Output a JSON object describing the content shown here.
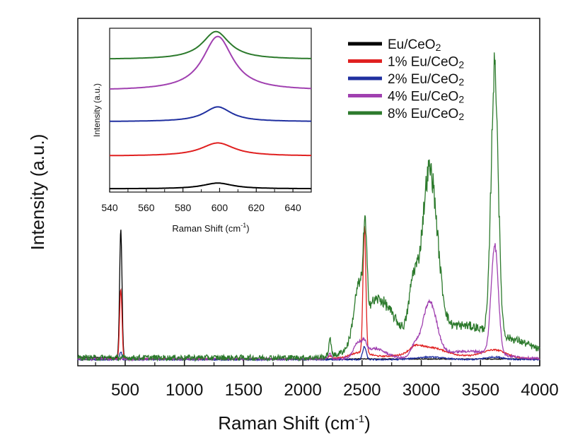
{
  "chart_data": [
    {
      "id": "main",
      "type": "line",
      "title": "",
      "xlabel": "Raman Shift (cm",
      "xlabel_sup": "-1",
      "xlabel_end": ")",
      "ylabel": "Intensity (a.u.)",
      "xlim": [
        100,
        4000
      ],
      "ylim": [
        0,
        100
      ],
      "xticks": [
        500,
        1000,
        1500,
        2000,
        2500,
        3000,
        3500,
        4000
      ],
      "xtick_labels": [
        "500",
        "1000",
        "1500",
        "2000",
        "2500",
        "3000",
        "3500",
        "4000"
      ],
      "legend": {
        "position": "top-right",
        "entries": [
          "Eu/CeO",
          "1% Eu/CeO",
          "2% Eu/CeO",
          "4% Eu/CeO",
          "8% Eu/CeO"
        ],
        "subscript": "2"
      },
      "series": [
        {
          "name": "Eu/CeO2",
          "color": "#000000",
          "baseline": 2,
          "noise": 0.3,
          "peaks": [
            [
              463,
              100,
              10
            ],
            [
              150,
              1.2,
              300
            ]
          ]
        },
        {
          "name": "1% Eu/CeO2",
          "color": "#e02020",
          "baseline": 2,
          "noise": 0.5,
          "peaks": [
            [
              463,
              55,
              10
            ],
            [
              2520,
              98,
              12
            ],
            [
              2230,
              2,
              15
            ],
            [
              2480,
              4,
              80
            ],
            [
              2950,
              4,
              50
            ],
            [
              3070,
              6,
              120
            ],
            [
              3620,
              6,
              100
            ],
            [
              3050,
              3,
              400
            ]
          ]
        },
        {
          "name": "2% Eu/CeO2",
          "color": "#2030a0",
          "baseline": 1.5,
          "noise": 0.5,
          "peaks": [
            [
              463,
              6,
              10
            ],
            [
              2520,
              10,
              15
            ],
            [
              3070,
              2,
              120
            ],
            [
              3620,
              2,
              80
            ]
          ]
        },
        {
          "name": "4% Eu/CeO2",
          "color": "#a040b0",
          "baseline": 2,
          "noise": 0.8,
          "peaks": [
            [
              2230,
              4,
              12
            ],
            [
              2470,
              10,
              40
            ],
            [
              2600,
              8,
              100
            ],
            [
              2940,
              8,
              30
            ],
            [
              3070,
              42,
              60
            ],
            [
              3620,
              85,
              30
            ],
            [
              3400,
              6,
              250
            ],
            [
              2520,
              5,
              15
            ]
          ]
        },
        {
          "name": "8% Eu/CeO2",
          "color": "#2c7a2c",
          "baseline": 3,
          "noise": 2.2,
          "peaks": [
            [
              2230,
              12,
              12
            ],
            [
              2470,
              35,
              40
            ],
            [
              2525,
              60,
              15
            ],
            [
              2620,
              30,
              120
            ],
            [
              2930,
              35,
              35
            ],
            [
              3070,
              128,
              65
            ],
            [
              3620,
              207,
              30
            ],
            [
              3350,
              25,
              300
            ],
            [
              3850,
              6,
              150
            ],
            [
              2700,
              15,
              200
            ]
          ]
        }
      ]
    },
    {
      "id": "inset",
      "type": "line",
      "xlabel": "Raman Shift (cm",
      "xlabel_sup": "-1",
      "xlabel_end": ")",
      "ylabel": "Intensity (a.u.)",
      "xlim": [
        540,
        650
      ],
      "ylim": [
        0,
        100
      ],
      "xticks": [
        540,
        560,
        580,
        600,
        620,
        640
      ],
      "xtick_labels": [
        "540",
        "560",
        "580",
        "600",
        "620",
        "640"
      ],
      "series": [
        {
          "name": "Eu/CeO2",
          "color": "#000000",
          "offset": 2,
          "amp": 3.5,
          "center": 599,
          "width": 10
        },
        {
          "name": "1% Eu/CeO2",
          "color": "#e02020",
          "offset": 22,
          "amp": 8,
          "center": 599,
          "width": 11
        },
        {
          "name": "2% Eu/CeO2",
          "color": "#2030a0",
          "offset": 43,
          "amp": 9,
          "center": 599,
          "width": 9
        },
        {
          "name": "4% Eu/CeO2",
          "color": "#a040b0",
          "offset": 62,
          "amp": 33,
          "center": 599,
          "width": 10
        },
        {
          "name": "8% Eu/CeO2",
          "color": "#2c7a2c",
          "offset": 81,
          "amp": 17,
          "center": 598,
          "width": 9
        }
      ]
    }
  ]
}
